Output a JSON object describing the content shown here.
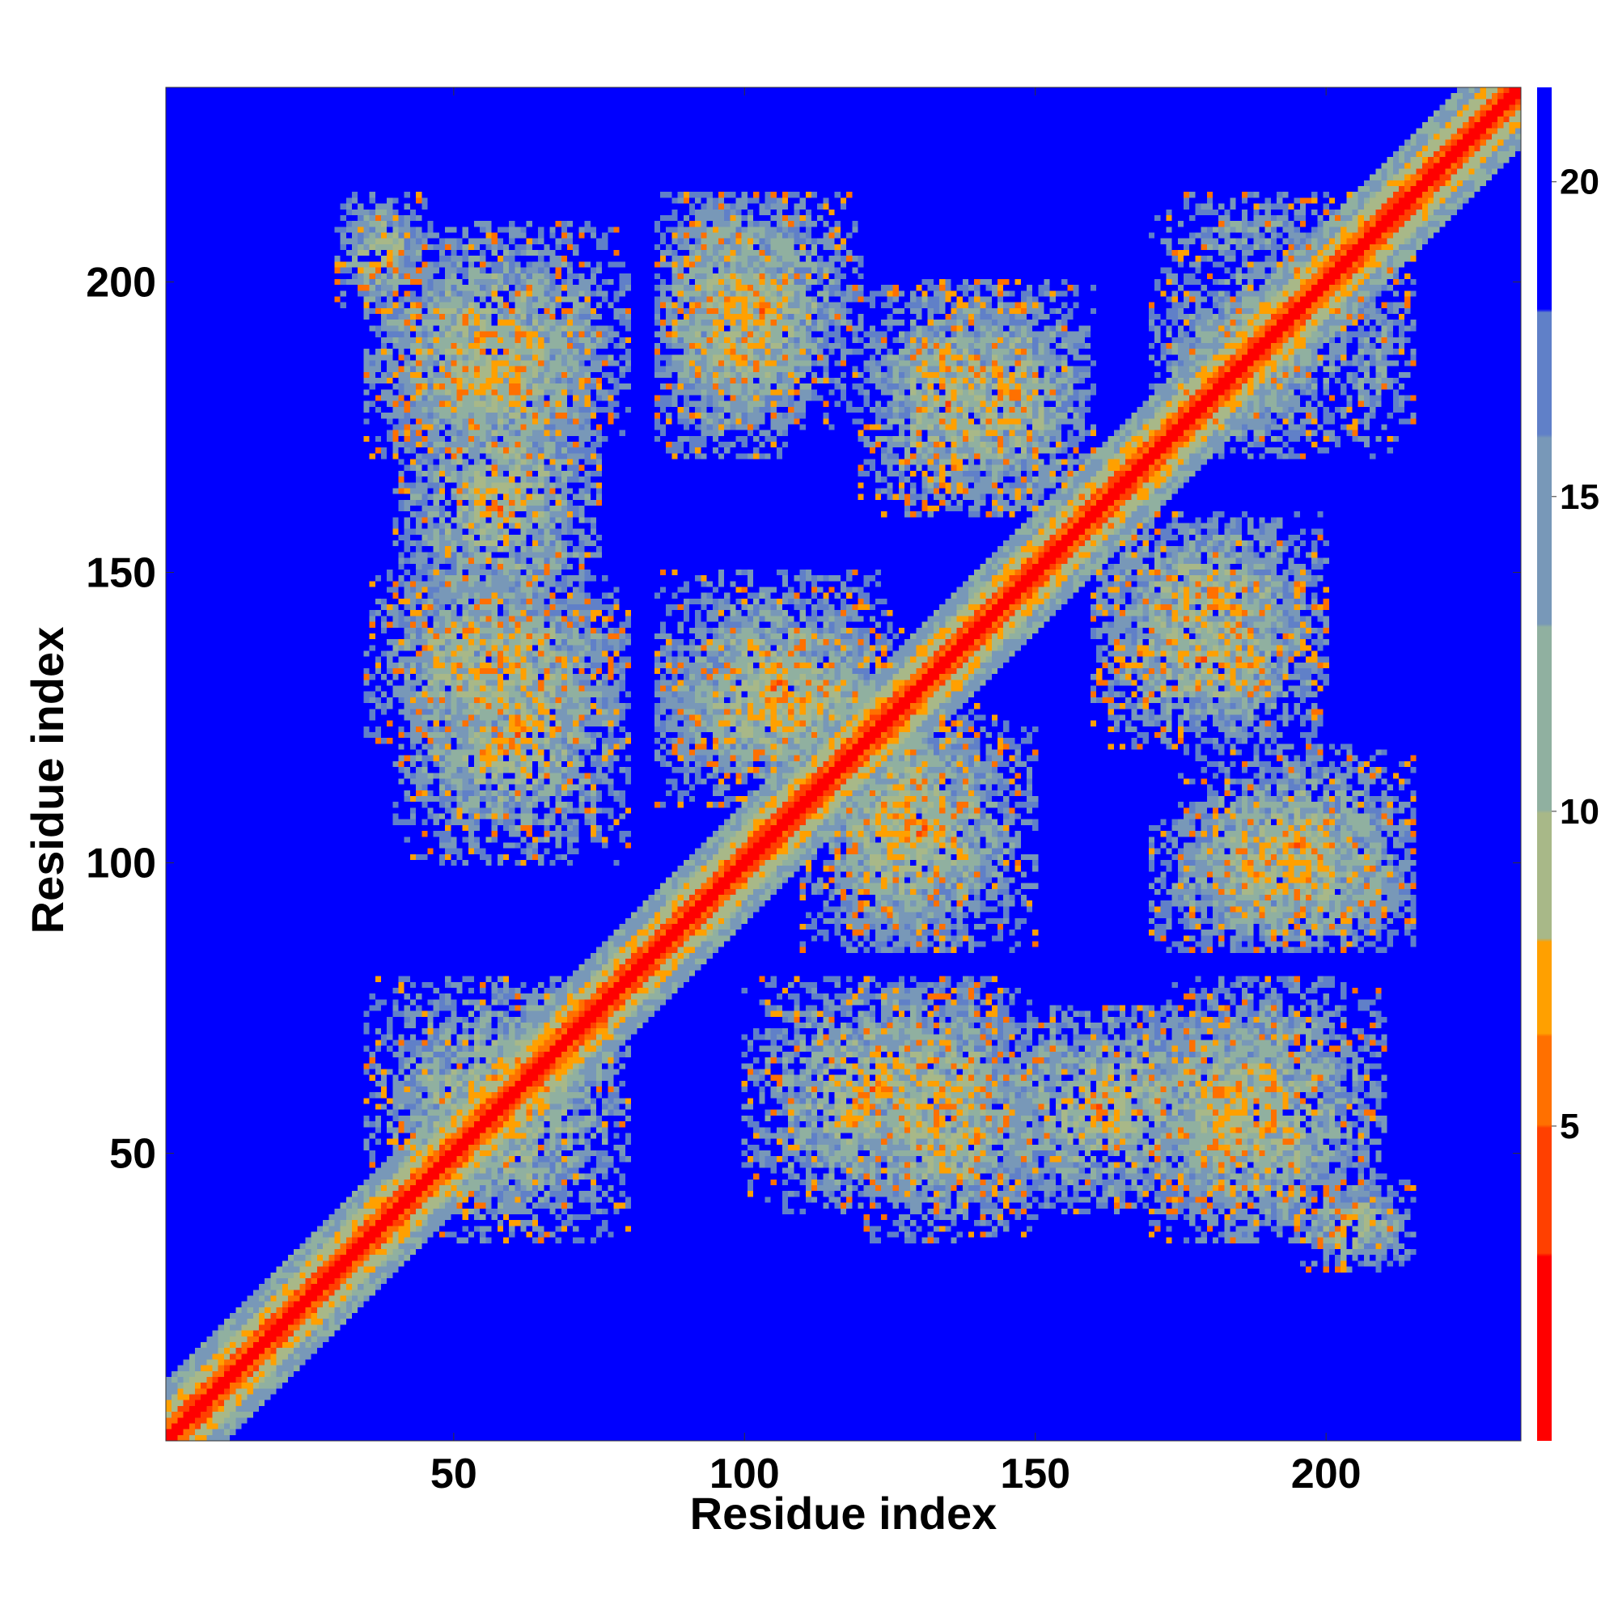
{
  "chart_data": {
    "type": "heatmap",
    "title": "",
    "xlabel": "Residue index",
    "ylabel": "Residue index",
    "xlim": [
      1,
      233
    ],
    "ylim": [
      1,
      233
    ],
    "xticks": [
      50,
      100,
      150,
      200
    ],
    "yticks": [
      50,
      100,
      150,
      200
    ],
    "colorbar": {
      "range": [
        0,
        21.5
      ],
      "ticks": [
        5,
        10,
        15,
        20
      ],
      "colors": [
        {
          "max": 3,
          "color": "#ff0000"
        },
        {
          "max": 5,
          "color": "#ff4000"
        },
        {
          "max": 6.5,
          "color": "#ff7000"
        },
        {
          "max": 8,
          "color": "#ffa000"
        },
        {
          "max": 10,
          "color": "#a8b888"
        },
        {
          "max": 13,
          "color": "#90b0a0"
        },
        {
          "max": 16,
          "color": "#7898b8"
        },
        {
          "max": 18,
          "color": "#6080c8"
        },
        {
          "max": 21.5,
          "color": "#0000ff"
        }
      ]
    },
    "description_regions": {
      "diagonal_band_width": 10,
      "contact_blocks": [
        {
          "x": [
            35,
            80
          ],
          "y": [
            35,
            80
          ]
        },
        {
          "x": [
            40,
            75
          ],
          "y": [
            170,
            195
          ]
        },
        {
          "x": [
            85,
            110
          ],
          "y": [
            170,
            215
          ]
        },
        {
          "x": [
            120,
            150
          ],
          "y": [
            160,
            200
          ]
        },
        {
          "x": [
            170,
            205
          ],
          "y": [
            170,
            215
          ]
        },
        {
          "x": [
            35,
            80
          ],
          "y": [
            120,
            150
          ]
        },
        {
          "x": [
            85,
            125
          ],
          "y": [
            110,
            150
          ]
        },
        {
          "x": [
            100,
            145
          ],
          "y": [
            40,
            80
          ]
        },
        {
          "x": [
            140,
            185
          ],
          "y": [
            40,
            75
          ]
        },
        {
          "x": [
            170,
            210
          ],
          "y": [
            35,
            80
          ]
        },
        {
          "x": [
            195,
            215
          ],
          "y": [
            30,
            45
          ]
        },
        {
          "x": [
            175,
            215
          ],
          "y": [
            85,
            120
          ]
        },
        {
          "x": [
            160,
            200
          ],
          "y": [
            130,
            160
          ]
        },
        {
          "x": [
            115,
            140
          ],
          "y": [
            85,
            130
          ]
        }
      ]
    }
  }
}
